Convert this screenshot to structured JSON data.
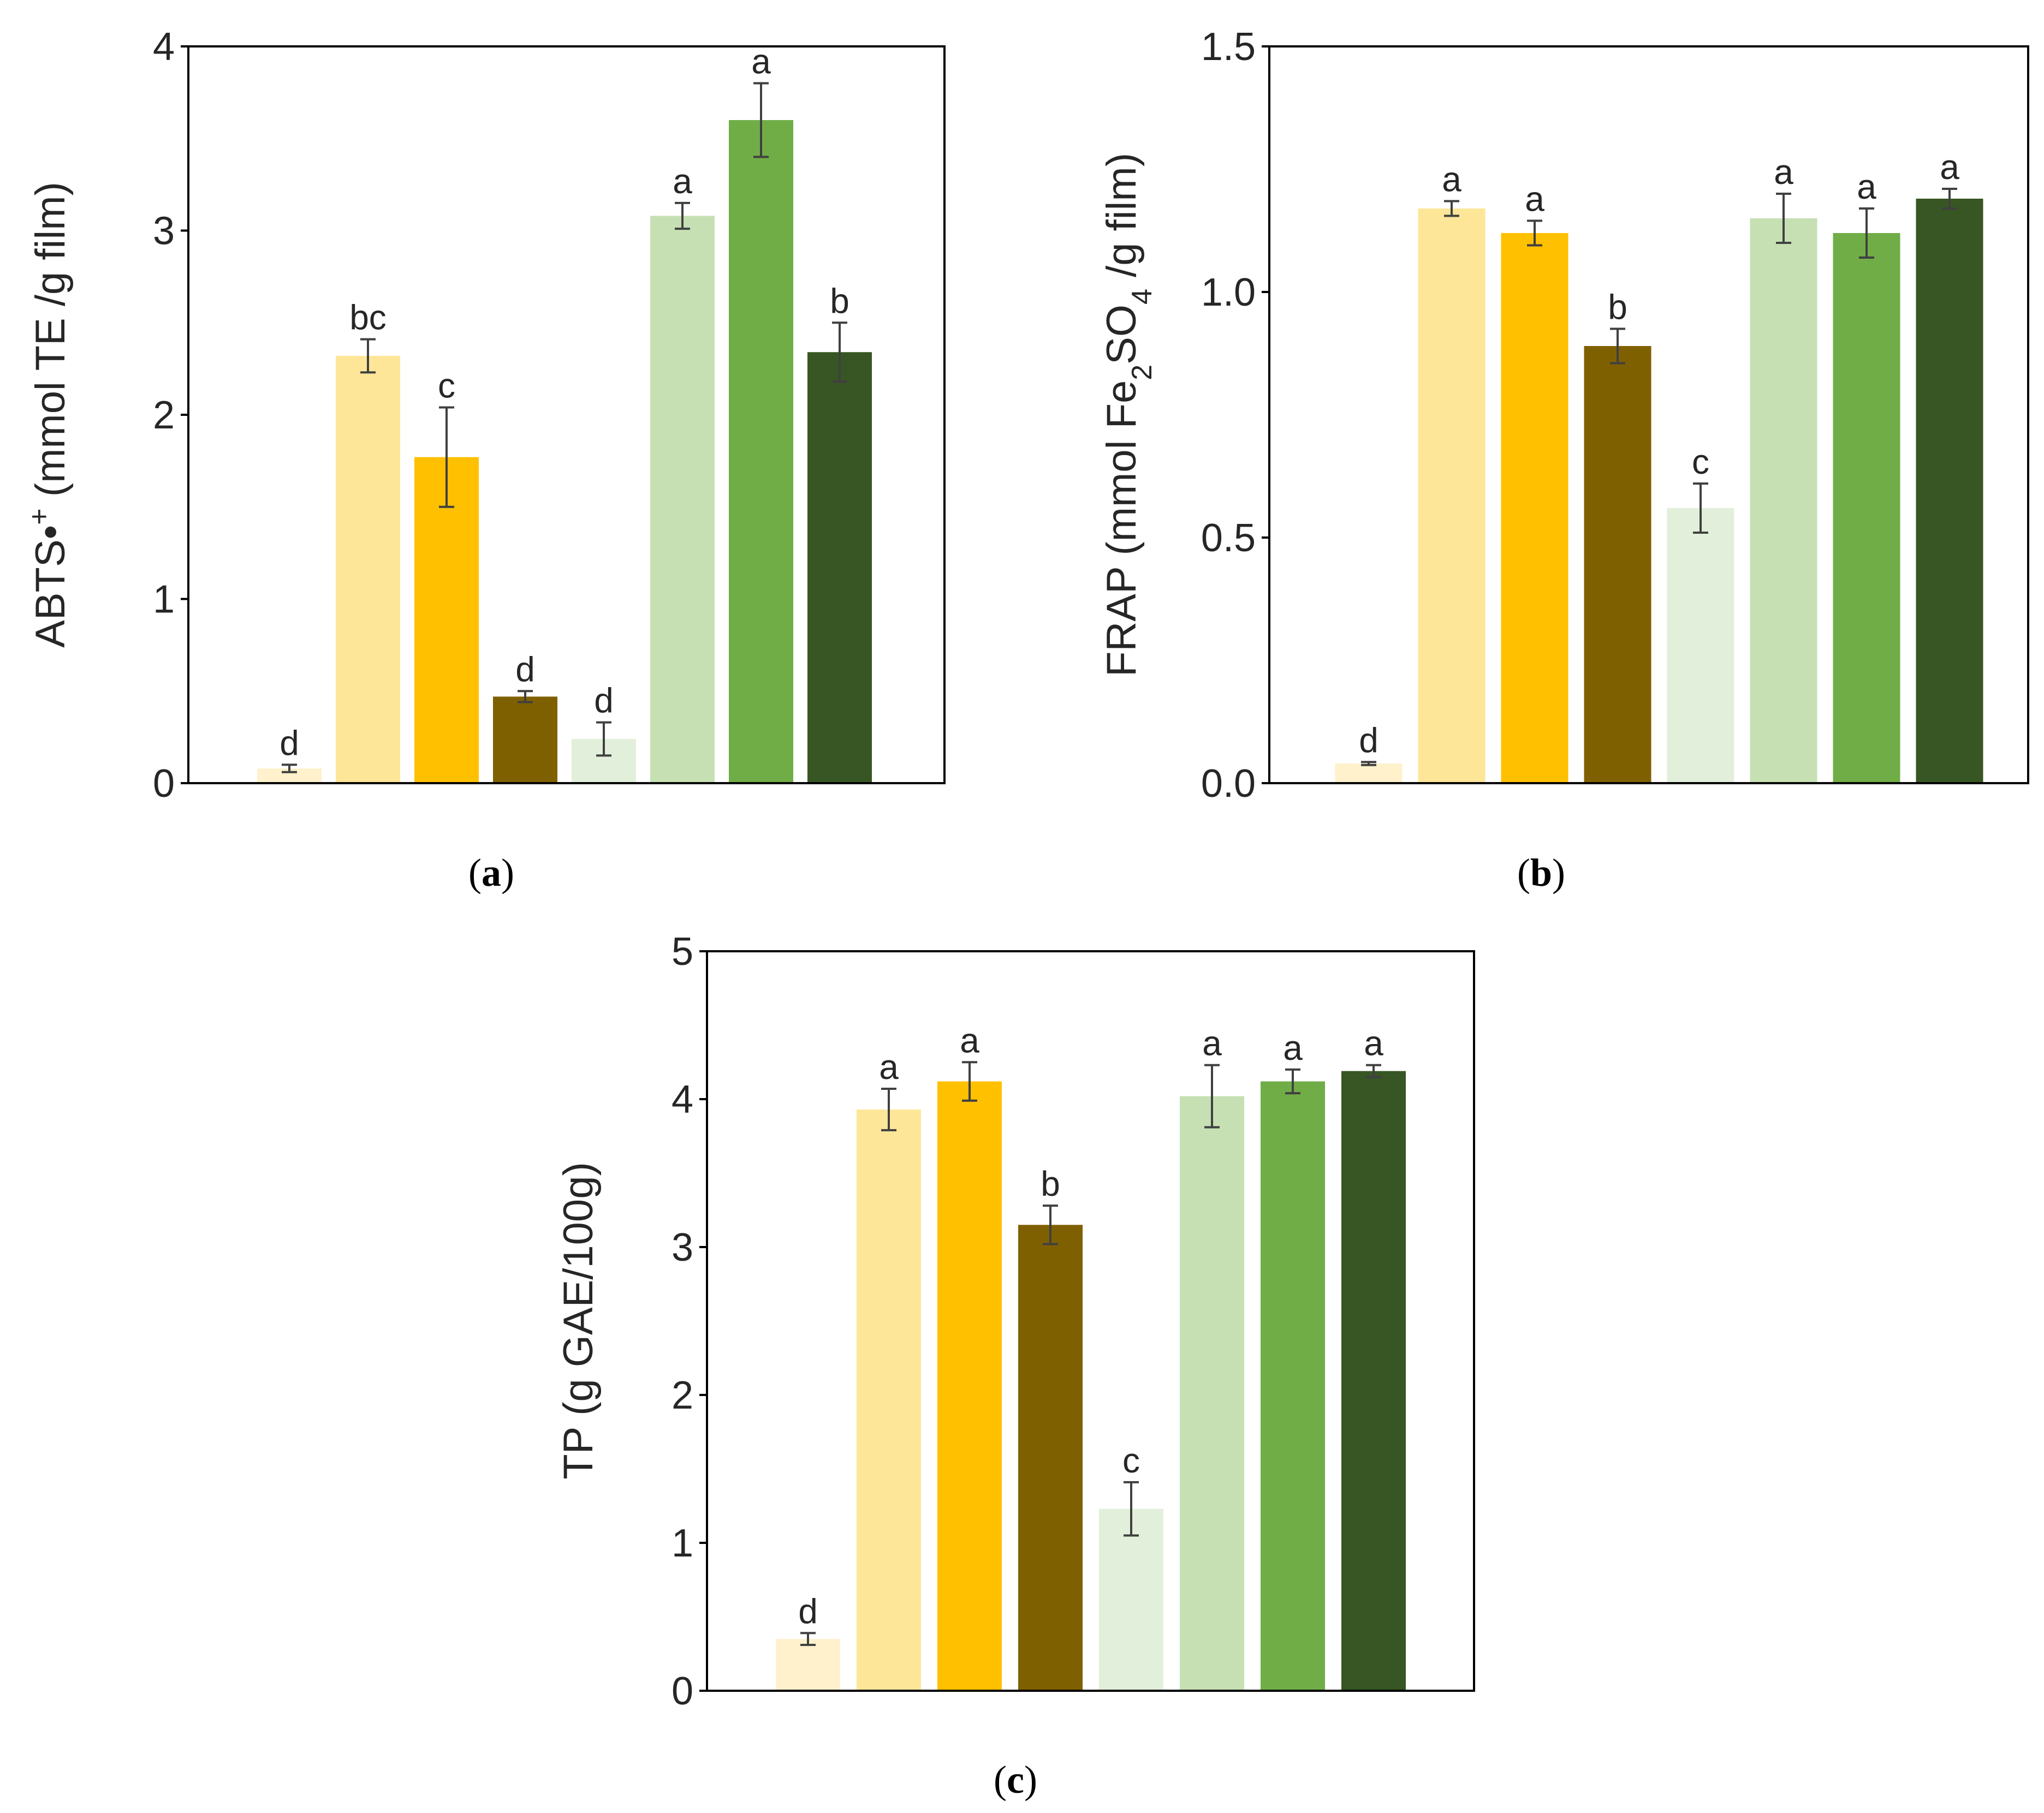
{
  "colors": [
    "#FEF1CC",
    "#FEE699",
    "#FFC000",
    "#7F6000",
    "#E2EFDA",
    "#C6E0B4",
    "#70AD47",
    "#375623"
  ],
  "chart_data": [
    {
      "id": "a",
      "type": "bar",
      "panel_label": "a",
      "ylabel_main": "ABTS•",
      "ylabel_sup": "+",
      "ylabel_rest": " (mmol TE /g film)",
      "ylim": [
        0,
        4
      ],
      "yticks": [
        "0",
        "1",
        "2",
        "3",
        "4"
      ],
      "ytick_values": [
        0,
        1,
        2,
        3,
        4
      ],
      "values": [
        0.08,
        2.32,
        1.77,
        0.47,
        0.24,
        3.08,
        3.6,
        2.34
      ],
      "errors": [
        0.02,
        0.09,
        0.27,
        0.03,
        0.09,
        0.07,
        0.2,
        0.16
      ],
      "sig_labels": [
        "d",
        "bc",
        "c",
        "d",
        "d",
        "a",
        "a",
        "b"
      ]
    },
    {
      "id": "b",
      "type": "bar",
      "panel_label": "b",
      "ylabel_main": "FRAP (mmol Fe",
      "ylabel_sub1": "2",
      "ylabel_mid": "SO",
      "ylabel_sub2": "4",
      "ylabel_rest": " /g film)",
      "ylim": [
        0,
        1.5
      ],
      "yticks": [
        "0.0",
        "0.5",
        "1.0",
        "1.5"
      ],
      "ytick_values": [
        0,
        0.5,
        1.0,
        1.5
      ],
      "values": [
        0.04,
        1.17,
        1.12,
        0.89,
        0.56,
        1.15,
        1.12,
        1.19
      ],
      "errors": [
        0.003,
        0.015,
        0.025,
        0.035,
        0.05,
        0.05,
        0.05,
        0.02
      ],
      "sig_labels": [
        "d",
        "a",
        "a",
        "b",
        "c",
        "a",
        "a",
        "a"
      ]
    },
    {
      "id": "c",
      "type": "bar",
      "panel_label": "c",
      "ylabel": "TP (g GAE/100g)",
      "ylim": [
        0,
        5
      ],
      "yticks": [
        "0",
        "1",
        "2",
        "3",
        "4",
        "5"
      ],
      "ytick_values": [
        0,
        1,
        2,
        3,
        4,
        5
      ],
      "values": [
        0.35,
        3.93,
        4.12,
        3.15,
        1.23,
        4.02,
        4.12,
        4.19
      ],
      "errors": [
        0.04,
        0.14,
        0.13,
        0.13,
        0.18,
        0.21,
        0.08,
        0.04
      ],
      "sig_labels": [
        "d",
        "a",
        "a",
        "b",
        "c",
        "a",
        "a",
        "a"
      ]
    }
  ]
}
